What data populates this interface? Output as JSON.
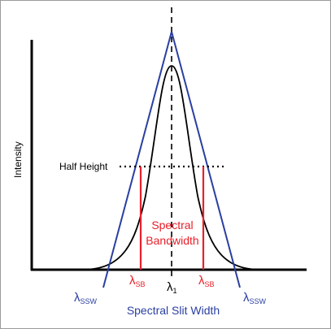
{
  "diagram": {
    "y_axis_label": "Intensity",
    "half_height_label": "Half Height",
    "bandwidth_label_line1": "Spectral",
    "bandwidth_label_line2": "Bandwidth",
    "center_symbol": "λ",
    "center_subscript": "1",
    "sb_symbol": "λ",
    "sb_subscript": "SB",
    "ssw_symbol": "λ",
    "ssw_subscript": "SSW",
    "slit_width_label": "Spectral Slit Width"
  },
  "colors": {
    "axis": "#000000",
    "curve": "#000000",
    "triangle": "#2a3fa0",
    "bandwidth": "#e8202a",
    "slit_label": "#2a3fa0"
  }
}
